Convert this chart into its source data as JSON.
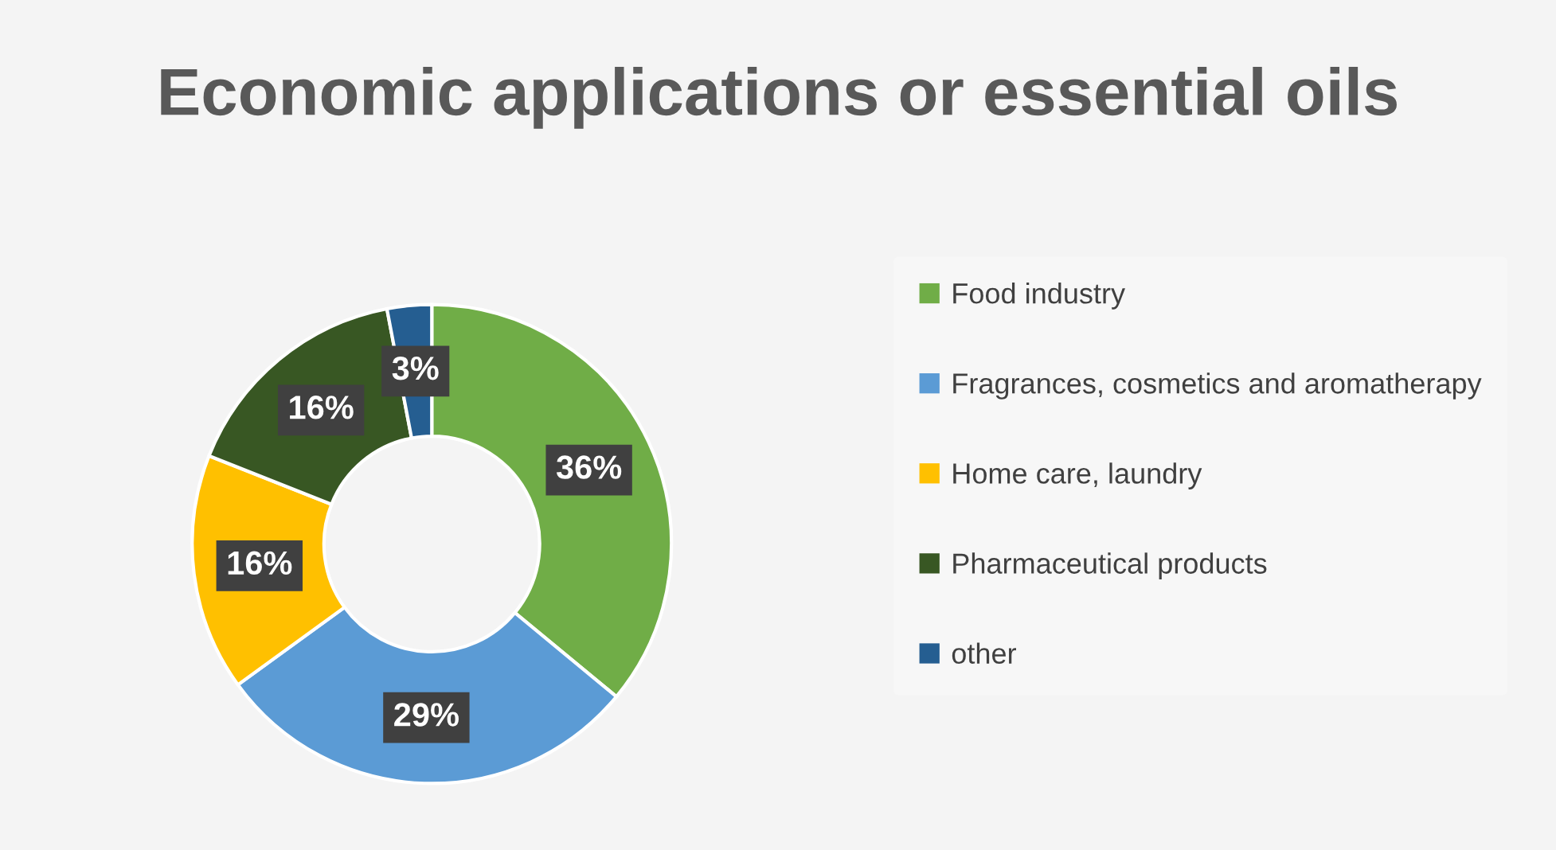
{
  "chart_data": {
    "type": "donut",
    "title": "Economic applications or essential oils",
    "categories": [
      "Food industry",
      "Fragrances, cosmetics and aromatherapy",
      "Home care, laundry",
      "Pharmaceutical products",
      "other"
    ],
    "values": [
      36,
      29,
      16,
      16,
      3
    ],
    "colors": [
      "#70ad47",
      "#5b9bd5",
      "#ffc000",
      "#385723",
      "#255e91"
    ],
    "value_labels": [
      "36%",
      "29%",
      "16%",
      "16%",
      "3%"
    ],
    "legend": "right"
  }
}
